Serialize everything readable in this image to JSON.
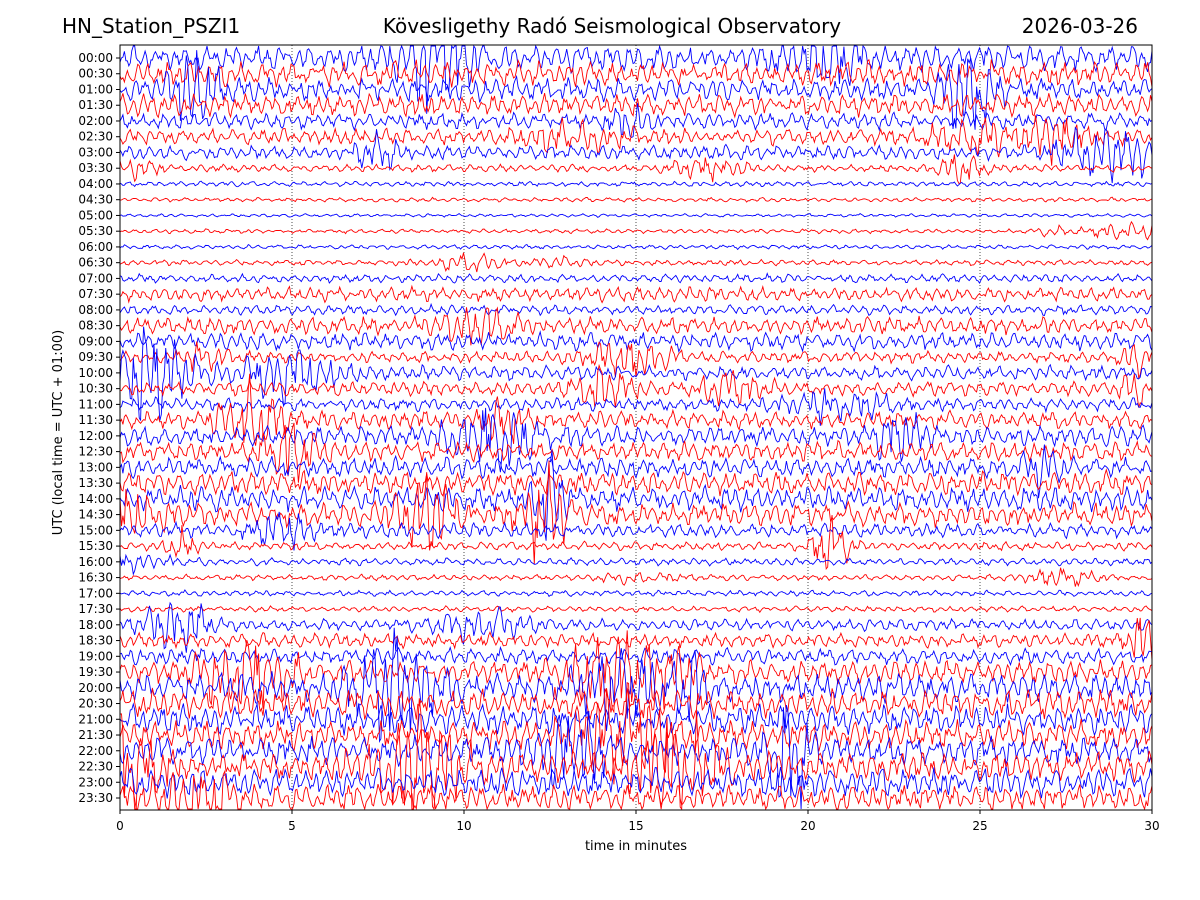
{
  "header": {
    "station": "HN_Station_PSZI1",
    "observatory": "Kövesligethy Radó Seismological Observatory",
    "date": "2026-03-26"
  },
  "chart_data": {
    "type": "line",
    "title": "Kövesligethy Radó Seismological Observatory",
    "xlabel": "time in minutes",
    "ylabel": "UTC (local time = UTC + 01:00)",
    "xlim": [
      0,
      30
    ],
    "x_ticks": [
      "0",
      "5",
      "10",
      "15",
      "20",
      "25",
      "30"
    ],
    "x_tick_values": [
      0,
      5,
      10,
      15,
      20,
      25,
      30
    ],
    "grid": "vertical dotted lines at x ticks",
    "trace_colors": [
      "#0000ff",
      "#ff0000"
    ],
    "row_labels": [
      "00:00",
      "00:30",
      "01:00",
      "01:30",
      "02:00",
      "02:30",
      "03:00",
      "03:30",
      "04:00",
      "04:30",
      "05:00",
      "05:30",
      "06:00",
      "06:30",
      "07:00",
      "07:30",
      "08:00",
      "08:30",
      "09:00",
      "09:30",
      "10:00",
      "10:30",
      "11:00",
      "11:30",
      "12:00",
      "12:30",
      "13:00",
      "13:30",
      "14:00",
      "14:30",
      "15:00",
      "15:30",
      "16:00",
      "16:30",
      "17:00",
      "17:30",
      "18:00",
      "18:30",
      "19:00",
      "19:30",
      "20:00",
      "20:30",
      "21:00",
      "21:30",
      "22:00",
      "22:30",
      "23:00",
      "23:30"
    ],
    "relative_amplitude": [
      0.9,
      0.9,
      0.8,
      0.75,
      0.55,
      0.55,
      0.5,
      0.25,
      0.18,
      0.15,
      0.12,
      0.15,
      0.15,
      0.2,
      0.3,
      0.5,
      0.35,
      0.6,
      0.6,
      0.4,
      0.5,
      0.5,
      0.45,
      0.6,
      0.7,
      0.7,
      0.7,
      0.8,
      0.85,
      0.8,
      0.5,
      0.3,
      0.25,
      0.2,
      0.2,
      0.2,
      0.4,
      0.5,
      0.55,
      0.8,
      1.0,
      1.0,
      1.0,
      1.0,
      1.0,
      1.0,
      1.0,
      0.9
    ]
  }
}
